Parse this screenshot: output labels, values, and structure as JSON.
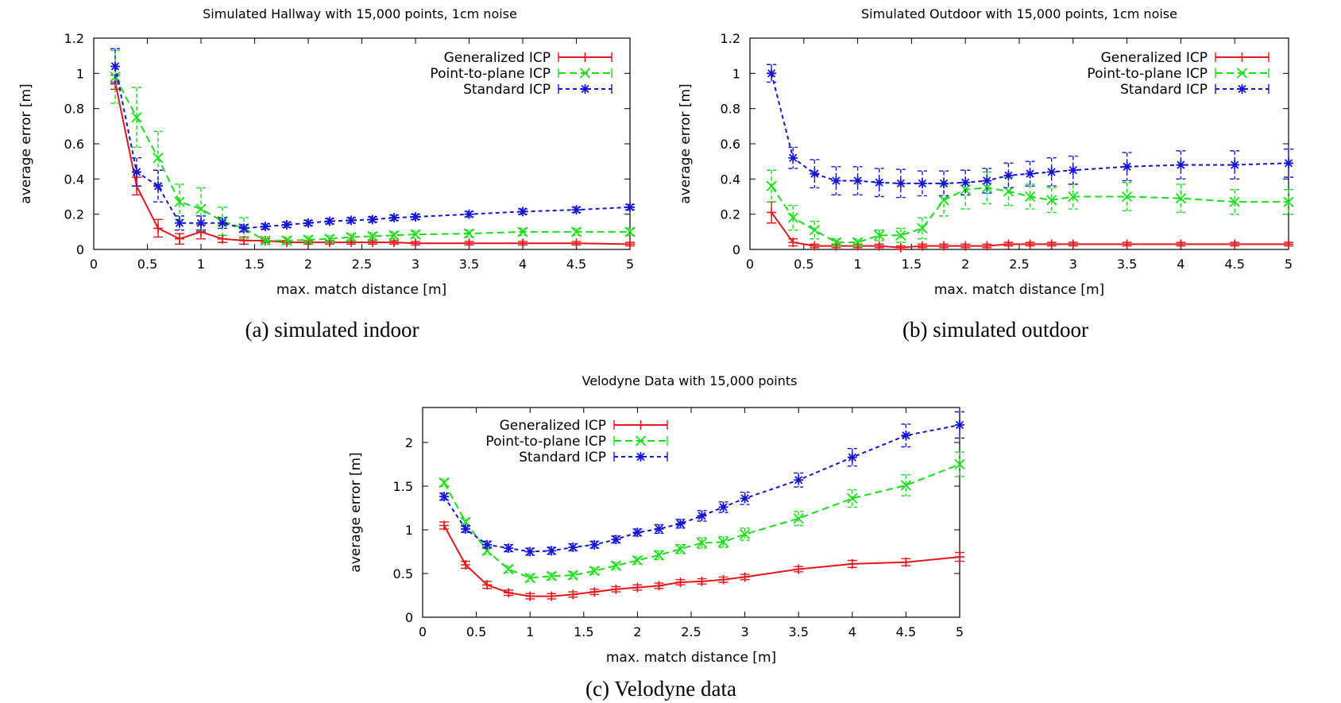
{
  "captions": [
    "(a) simulated indoor",
    "(b) simulated outdoor",
    "(c) Velodyne data"
  ],
  "colors": {
    "generalized": "#e8141a",
    "point_to_plane": "#17e017",
    "standard": "#1414d8"
  },
  "chart_data": [
    {
      "type": "line",
      "title": "Simulated Hallway with 15,000 points, 1cm noise",
      "xlabel": "max. match distance [m]",
      "ylabel": "average error [m]",
      "xlim": [
        0,
        5
      ],
      "ylim": [
        0,
        1.2
      ],
      "xticks": [
        "0",
        "0.5",
        "1",
        "1.5",
        "2",
        "2.5",
        "3",
        "3.5",
        "4",
        "4.5",
        "5"
      ],
      "yticks": [
        "0",
        "0.2",
        "0.4",
        "0.6",
        "0.8",
        "1",
        "1.2"
      ],
      "legend_position": "top-right",
      "x": [
        0.2,
        0.4,
        0.6,
        0.8,
        1.0,
        1.2,
        1.4,
        1.6,
        1.8,
        2.0,
        2.2,
        2.4,
        2.6,
        2.8,
        3.0,
        3.5,
        4.0,
        4.5,
        5.0
      ],
      "series": [
        {
          "name": "Generalized ICP",
          "marker": "plus",
          "values": [
            0.95,
            0.36,
            0.12,
            0.06,
            0.1,
            0.06,
            0.05,
            0.05,
            0.04,
            0.04,
            0.04,
            0.04,
            0.04,
            0.04,
            0.035,
            0.035,
            0.035,
            0.035,
            0.03
          ],
          "errors": [
            0.04,
            0.05,
            0.05,
            0.03,
            0.04,
            0.02,
            0.02,
            0.01,
            0.01,
            0.01,
            0.01,
            0.01,
            0.01,
            0.01,
            0.01,
            0.01,
            0.01,
            0.01,
            0.01
          ]
        },
        {
          "name": "Point-to-plane ICP",
          "marker": "x",
          "values": [
            0.98,
            0.75,
            0.52,
            0.27,
            0.23,
            0.16,
            0.12,
            0.05,
            0.05,
            0.055,
            0.06,
            0.07,
            0.075,
            0.08,
            0.085,
            0.09,
            0.1,
            0.1,
            0.1
          ],
          "errors": [
            0.15,
            0.17,
            0.15,
            0.1,
            0.12,
            0.08,
            0.06,
            0.02,
            0.02,
            0.02,
            0.02,
            0.02,
            0.02,
            0.02,
            0.02,
            0.02,
            0.02,
            0.02,
            0.02
          ]
        },
        {
          "name": "Standard ICP",
          "marker": "star",
          "values": [
            1.04,
            0.44,
            0.36,
            0.15,
            0.15,
            0.15,
            0.12,
            0.13,
            0.14,
            0.15,
            0.16,
            0.165,
            0.17,
            0.18,
            0.185,
            0.2,
            0.215,
            0.225,
            0.24
          ],
          "errors": [
            0.1,
            0.08,
            0.09,
            0.04,
            0.04,
            0.03,
            0.02,
            0.015,
            0.015,
            0.015,
            0.015,
            0.015,
            0.015,
            0.015,
            0.015,
            0.015,
            0.015,
            0.015,
            0.015
          ]
        }
      ]
    },
    {
      "type": "line",
      "title": "Simulated Outdoor with 15,000 points, 1cm noise",
      "xlabel": "max. match distance [m]",
      "ylabel": "average error [m]",
      "xlim": [
        0,
        5
      ],
      "ylim": [
        0,
        1.2
      ],
      "xticks": [
        "0",
        "0.5",
        "1",
        "1.5",
        "2",
        "2.5",
        "3",
        "3.5",
        "4",
        "4.5",
        "5"
      ],
      "yticks": [
        "0",
        "0.2",
        "0.4",
        "0.6",
        "0.8",
        "1",
        "1.2"
      ],
      "legend_position": "top-right",
      "x": [
        0.2,
        0.4,
        0.6,
        0.8,
        1.0,
        1.2,
        1.4,
        1.6,
        1.8,
        2.0,
        2.2,
        2.4,
        2.6,
        2.8,
        3.0,
        3.5,
        4.0,
        4.5,
        5.0
      ],
      "series": [
        {
          "name": "Generalized ICP",
          "marker": "plus",
          "values": [
            0.21,
            0.04,
            0.02,
            0.02,
            0.02,
            0.02,
            0.01,
            0.02,
            0.02,
            0.02,
            0.02,
            0.03,
            0.03,
            0.03,
            0.03,
            0.03,
            0.03,
            0.03,
            0.03
          ],
          "errors": [
            0.06,
            0.02,
            0.01,
            0.01,
            0.01,
            0.01,
            0.01,
            0.01,
            0.01,
            0.01,
            0.01,
            0.01,
            0.01,
            0.01,
            0.01,
            0.01,
            0.01,
            0.01,
            0.01
          ]
        },
        {
          "name": "Point-to-plane ICP",
          "marker": "x",
          "values": [
            0.36,
            0.18,
            0.11,
            0.04,
            0.04,
            0.08,
            0.08,
            0.12,
            0.28,
            0.34,
            0.35,
            0.33,
            0.3,
            0.28,
            0.3,
            0.3,
            0.29,
            0.27,
            0.27
          ],
          "errors": [
            0.09,
            0.07,
            0.05,
            0.02,
            0.02,
            0.03,
            0.04,
            0.06,
            0.09,
            0.11,
            0.09,
            0.08,
            0.07,
            0.07,
            0.07,
            0.08,
            0.08,
            0.07,
            0.07
          ]
        },
        {
          "name": "Standard ICP",
          "marker": "star",
          "values": [
            1.0,
            0.52,
            0.43,
            0.39,
            0.39,
            0.38,
            0.375,
            0.375,
            0.375,
            0.38,
            0.39,
            0.42,
            0.43,
            0.44,
            0.45,
            0.47,
            0.48,
            0.48,
            0.49
          ],
          "errors": [
            0.05,
            0.06,
            0.08,
            0.08,
            0.08,
            0.08,
            0.08,
            0.07,
            0.07,
            0.07,
            0.07,
            0.07,
            0.07,
            0.08,
            0.08,
            0.08,
            0.08,
            0.08,
            0.08
          ]
        }
      ]
    },
    {
      "type": "line",
      "title": "Velodyne Data with 15,000 points",
      "xlabel": "max. match distance [m]",
      "ylabel": "average error [m]",
      "xlim": [
        0,
        5
      ],
      "ylim": [
        0,
        2.4
      ],
      "xticks": [
        "0",
        "0.5",
        "1",
        "1.5",
        "2",
        "2.5",
        "3",
        "3.5",
        "4",
        "4.5",
        "5"
      ],
      "yticks": [
        "0",
        "0.5",
        "1",
        "1.5",
        "2"
      ],
      "legend_position": "top-left",
      "x": [
        0.2,
        0.4,
        0.6,
        0.8,
        1.0,
        1.2,
        1.4,
        1.6,
        1.8,
        2.0,
        2.2,
        2.4,
        2.6,
        2.8,
        3.0,
        3.5,
        4.0,
        4.5,
        5.0
      ],
      "series": [
        {
          "name": "Generalized ICP",
          "marker": "plus",
          "values": [
            1.05,
            0.6,
            0.37,
            0.28,
            0.24,
            0.24,
            0.26,
            0.29,
            0.32,
            0.34,
            0.36,
            0.4,
            0.41,
            0.43,
            0.46,
            0.55,
            0.61,
            0.63,
            0.69
          ],
          "errors": [
            0.04,
            0.04,
            0.04,
            0.03,
            0.03,
            0.03,
            0.03,
            0.03,
            0.03,
            0.03,
            0.03,
            0.03,
            0.03,
            0.03,
            0.03,
            0.03,
            0.04,
            0.04,
            0.05
          ]
        },
        {
          "name": "Point-to-plane ICP",
          "marker": "x",
          "values": [
            1.54,
            1.09,
            0.76,
            0.55,
            0.45,
            0.47,
            0.48,
            0.53,
            0.59,
            0.65,
            0.71,
            0.78,
            0.85,
            0.86,
            0.95,
            1.13,
            1.36,
            1.51,
            1.75
          ],
          "errors": [
            0.04,
            0.04,
            0.04,
            0.04,
            0.04,
            0.04,
            0.04,
            0.04,
            0.04,
            0.04,
            0.05,
            0.05,
            0.06,
            0.06,
            0.07,
            0.08,
            0.1,
            0.12,
            0.14
          ]
        },
        {
          "name": "Standard ICP",
          "marker": "star",
          "values": [
            1.38,
            1.01,
            0.83,
            0.79,
            0.75,
            0.76,
            0.8,
            0.83,
            0.89,
            0.97,
            1.01,
            1.07,
            1.16,
            1.26,
            1.36,
            1.57,
            1.83,
            2.08,
            2.2
          ],
          "errors": [
            0.04,
            0.04,
            0.04,
            0.04,
            0.04,
            0.04,
            0.04,
            0.04,
            0.04,
            0.04,
            0.05,
            0.05,
            0.06,
            0.06,
            0.07,
            0.08,
            0.1,
            0.13,
            0.15
          ]
        }
      ]
    }
  ]
}
